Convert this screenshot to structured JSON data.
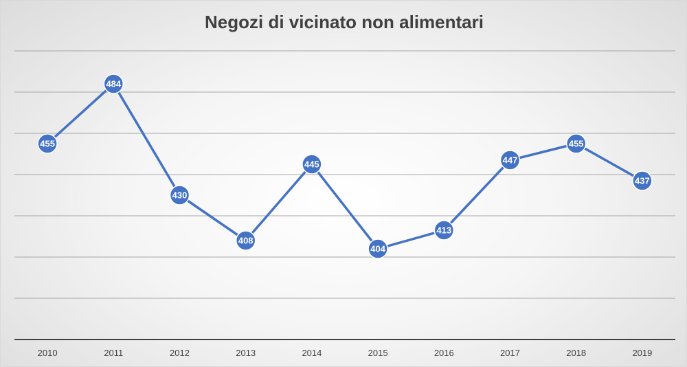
{
  "chart_data": {
    "type": "line",
    "title": "Negozi di vicinato non alimentari",
    "xlabel": "",
    "ylabel": "",
    "categories": [
      "2010",
      "2011",
      "2012",
      "2013",
      "2014",
      "2015",
      "2016",
      "2017",
      "2018",
      "2019"
    ],
    "series": [
      {
        "values": [
          455,
          484,
          430,
          408,
          445,
          404,
          413,
          447,
          455,
          437
        ],
        "color": "#4472C4"
      }
    ],
    "ylim": [
      360,
      500
    ],
    "y_axis_labels_visible": false,
    "grid": true,
    "data_labels": true,
    "legend": "none"
  }
}
